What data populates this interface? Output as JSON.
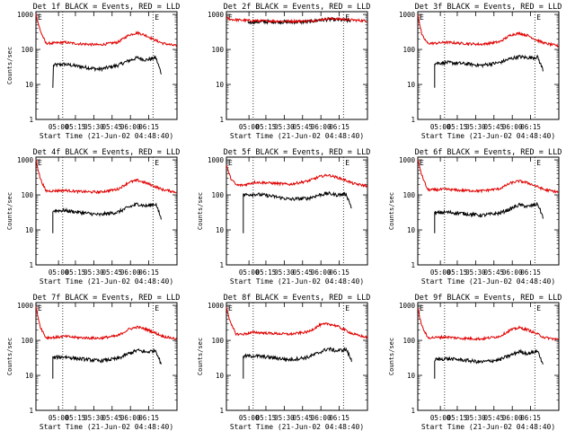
{
  "chart_data": [
    {
      "type": "line",
      "title": "Det 1f BLACK = Events, RED = LLD",
      "ylabel": "Counts/sec",
      "xlabel": "Start Time (21-Jun-02 04:48:40)",
      "xticks": [
        "05:00",
        "05:15",
        "05:30",
        "05:45",
        "06:00",
        "06:15"
      ],
      "yticks": [
        "1",
        "10",
        "100",
        "1000"
      ],
      "ylim": [
        1,
        1200
      ],
      "yscale": "log",
      "markers": [
        "05:07",
        "06:08"
      ],
      "series": [
        {
          "color": "#000000",
          "x": [
            0,
            0.05,
            0.12,
            0.2,
            0.3,
            0.45,
            0.58,
            0.66,
            0.72,
            0.78,
            0.85,
            0.89
          ],
          "y": [
            null,
            null,
            35,
            38,
            33,
            27,
            35,
            48,
            58,
            50,
            58,
            20
          ]
        },
        {
          "color": "#e00000",
          "x": [
            0,
            0.03,
            0.07,
            0.12,
            0.2,
            0.3,
            0.45,
            0.58,
            0.66,
            0.72,
            0.78,
            0.85,
            0.9,
            1.0
          ],
          "y": [
            1000,
            350,
            150,
            150,
            160,
            145,
            135,
            160,
            260,
            300,
            250,
            180,
            150,
            125
          ]
        }
      ]
    },
    {
      "type": "line",
      "title": "Det 2f BLACK = Events, RED = LLD",
      "ylabel": "",
      "xlabel": "Start Time (21-Jun-02 04:48:40)",
      "xticks": [
        "05:00",
        "05:15",
        "05:30",
        "05:45",
        "06:00",
        "06:15"
      ],
      "yticks": [
        "1",
        "10",
        "100",
        "1000"
      ],
      "ylim": [
        1,
        1200
      ],
      "yscale": "log",
      "markers": [
        "05:07",
        "06:08"
      ],
      "series": [
        {
          "color": "#000000",
          "x": [
            0.15,
            0.3,
            0.45,
            0.58,
            0.66,
            0.72,
            0.8,
            0.88
          ],
          "y": [
            600,
            620,
            600,
            620,
            680,
            720,
            700,
            650
          ]
        },
        {
          "color": "#e00000",
          "x": [
            0,
            0.03,
            0.07,
            0.12,
            0.2,
            0.3,
            0.45,
            0.58,
            0.66,
            0.72,
            0.8,
            0.88,
            1.0
          ],
          "y": [
            800,
            720,
            700,
            680,
            660,
            650,
            640,
            650,
            700,
            760,
            740,
            700,
            650
          ]
        }
      ]
    },
    {
      "type": "line",
      "title": "Det 3f BLACK = Events, RED = LLD",
      "ylabel": "",
      "xlabel": "Start Time (21-Jun-02 04:48:40)",
      "xticks": [
        "05:00",
        "05:15",
        "05:30",
        "05:45",
        "06:00",
        "06:15"
      ],
      "yticks": [
        "1",
        "10",
        "100",
        "1000"
      ],
      "ylim": [
        1,
        1200
      ],
      "yscale": "log",
      "markers": [
        "05:07",
        "06:08"
      ],
      "series": [
        {
          "color": "#000000",
          "x": [
            0.12,
            0.2,
            0.3,
            0.45,
            0.58,
            0.66,
            0.72,
            0.78,
            0.85,
            0.89
          ],
          "y": [
            40,
            42,
            40,
            35,
            42,
            55,
            62,
            58,
            60,
            25
          ]
        },
        {
          "color": "#e00000",
          "x": [
            0,
            0.03,
            0.07,
            0.12,
            0.2,
            0.3,
            0.45,
            0.58,
            0.66,
            0.72,
            0.78,
            0.85,
            0.9,
            1.0
          ],
          "y": [
            1000,
            250,
            150,
            150,
            160,
            150,
            140,
            165,
            260,
            290,
            250,
            180,
            150,
            125
          ]
        }
      ]
    },
    {
      "type": "line",
      "title": "Det 4f BLACK = Events, RED = LLD",
      "ylabel": "Counts/sec",
      "xlabel": "Start Time (21-Jun-02 04:48:40)",
      "xticks": [
        "05:00",
        "05:15",
        "05:30",
        "05:45",
        "06:00",
        "06:15"
      ],
      "yticks": [
        "1",
        "10",
        "100",
        "1000"
      ],
      "ylim": [
        1,
        1200
      ],
      "yscale": "log",
      "markers": [
        "05:07",
        "06:08"
      ],
      "series": [
        {
          "color": "#000000",
          "x": [
            0.12,
            0.2,
            0.3,
            0.45,
            0.58,
            0.66,
            0.72,
            0.78,
            0.85,
            0.89
          ],
          "y": [
            35,
            36,
            32,
            27,
            32,
            45,
            55,
            48,
            55,
            20
          ]
        },
        {
          "color": "#e00000",
          "x": [
            0,
            0.03,
            0.07,
            0.12,
            0.2,
            0.3,
            0.45,
            0.58,
            0.66,
            0.72,
            0.78,
            0.85,
            0.9,
            1.0
          ],
          "y": [
            1000,
            300,
            130,
            130,
            135,
            125,
            120,
            145,
            230,
            260,
            220,
            170,
            140,
            120
          ]
        }
      ]
    },
    {
      "type": "line",
      "title": "Det 5f BLACK = Events, RED = LLD",
      "ylabel": "Counts/sec",
      "xlabel": "Start Time (21-Jun-02 04:48:40)",
      "xticks": [
        "05:00",
        "05:15",
        "05:30",
        "05:45",
        "06:00",
        "06:15"
      ],
      "yticks": [
        "1",
        "10",
        "100",
        "1000"
      ],
      "ylim": [
        1,
        1200
      ],
      "yscale": "log",
      "markers": [
        "05:07",
        "06:08"
      ],
      "series": [
        {
          "color": "#000000",
          "x": [
            0.12,
            0.2,
            0.3,
            0.45,
            0.58,
            0.66,
            0.72,
            0.78,
            0.85,
            0.89
          ],
          "y": [
            100,
            105,
            95,
            75,
            80,
            100,
            110,
            100,
            105,
            40
          ]
        },
        {
          "color": "#e00000",
          "x": [
            0,
            0.03,
            0.07,
            0.12,
            0.2,
            0.3,
            0.45,
            0.58,
            0.66,
            0.72,
            0.78,
            0.85,
            0.9,
            1.0
          ],
          "y": [
            700,
            300,
            190,
            190,
            230,
            220,
            200,
            250,
            330,
            370,
            320,
            260,
            210,
            180
          ]
        }
      ]
    },
    {
      "type": "line",
      "title": "Det 6f BLACK = Events, RED = LLD",
      "ylabel": "Counts/sec",
      "xlabel": "Start Time (21-Jun-02 04:48:40)",
      "xticks": [
        "05:00",
        "05:15",
        "05:30",
        "05:45",
        "06:00",
        "06:15"
      ],
      "yticks": [
        "1",
        "10",
        "100",
        "1000"
      ],
      "ylim": [
        1,
        1200
      ],
      "yscale": "log",
      "markers": [
        "05:07",
        "06:08"
      ],
      "series": [
        {
          "color": "#000000",
          "x": [
            0.12,
            0.2,
            0.3,
            0.45,
            0.58,
            0.66,
            0.72,
            0.78,
            0.85,
            0.89
          ],
          "y": [
            30,
            32,
            30,
            26,
            30,
            40,
            52,
            46,
            55,
            22
          ]
        },
        {
          "color": "#e00000",
          "x": [
            0,
            0.03,
            0.07,
            0.12,
            0.2,
            0.3,
            0.45,
            0.58,
            0.66,
            0.72,
            0.78,
            0.85,
            0.9,
            1.0
          ],
          "y": [
            1000,
            350,
            140,
            140,
            145,
            135,
            130,
            150,
            220,
            250,
            220,
            170,
            140,
            120
          ]
        }
      ]
    },
    {
      "type": "line",
      "title": "Det 7f BLACK = Events, RED = LLD",
      "ylabel": "Counts/sec",
      "xlabel": "Start Time (21-Jun-02 04:48:40)",
      "xticks": [
        "05:00",
        "05:15",
        "05:30",
        "05:45",
        "06:00",
        "06:15"
      ],
      "yticks": [
        "1",
        "10",
        "100",
        "1000"
      ],
      "ylim": [
        1,
        1200
      ],
      "yscale": "log",
      "markers": [
        "05:07",
        "06:08"
      ],
      "series": [
        {
          "color": "#000000",
          "x": [
            0.12,
            0.2,
            0.3,
            0.45,
            0.58,
            0.66,
            0.72,
            0.78,
            0.85,
            0.89
          ],
          "y": [
            32,
            34,
            30,
            26,
            30,
            42,
            52,
            46,
            52,
            20
          ]
        },
        {
          "color": "#e00000",
          "x": [
            0,
            0.03,
            0.07,
            0.12,
            0.2,
            0.3,
            0.45,
            0.58,
            0.66,
            0.72,
            0.78,
            0.85,
            0.9,
            1.0
          ],
          "y": [
            900,
            250,
            120,
            120,
            130,
            120,
            115,
            135,
            210,
            240,
            210,
            160,
            130,
            110
          ]
        }
      ]
    },
    {
      "type": "line",
      "title": "Det 8f BLACK = Events, RED = LLD",
      "ylabel": "Counts/sec",
      "xlabel": "Start Time (21-Jun-02 04:48:40)",
      "xticks": [
        "05:00",
        "05:15",
        "05:30",
        "05:45",
        "06:00",
        "06:15"
      ],
      "yticks": [
        "1",
        "10",
        "100",
        "1000"
      ],
      "ylim": [
        1,
        1200
      ],
      "yscale": "log",
      "markers": [
        "05:07",
        "06:08"
      ],
      "series": [
        {
          "color": "#000000",
          "x": [
            0.12,
            0.2,
            0.3,
            0.45,
            0.58,
            0.66,
            0.72,
            0.78,
            0.85,
            0.89
          ],
          "y": [
            35,
            36,
            33,
            28,
            33,
            45,
            58,
            50,
            55,
            25
          ]
        },
        {
          "color": "#e00000",
          "x": [
            0,
            0.03,
            0.07,
            0.12,
            0.2,
            0.3,
            0.45,
            0.58,
            0.66,
            0.72,
            0.78,
            0.85,
            0.9,
            1.0
          ],
          "y": [
            900,
            300,
            150,
            150,
            170,
            160,
            150,
            175,
            270,
            300,
            260,
            190,
            150,
            120
          ]
        }
      ]
    },
    {
      "type": "line",
      "title": "Det 9f BLACK = Events, RED = LLD",
      "ylabel": "Counts/sec",
      "xlabel": "Start Time (21-Jun-02 04:48:40)",
      "xticks": [
        "05:00",
        "05:15",
        "05:30",
        "05:45",
        "06:00",
        "06:15"
      ],
      "yticks": [
        "1",
        "10",
        "100",
        "1000"
      ],
      "ylim": [
        1,
        1200
      ],
      "yscale": "log",
      "markers": [
        "05:07",
        "06:08"
      ],
      "series": [
        {
          "color": "#000000",
          "x": [
            0.12,
            0.2,
            0.3,
            0.45,
            0.58,
            0.66,
            0.72,
            0.78,
            0.85,
            0.89
          ],
          "y": [
            28,
            30,
            28,
            24,
            28,
            38,
            48,
            42,
            50,
            20
          ]
        },
        {
          "color": "#e00000",
          "x": [
            0,
            0.03,
            0.07,
            0.12,
            0.2,
            0.3,
            0.45,
            0.58,
            0.66,
            0.72,
            0.78,
            0.85,
            0.9,
            1.0
          ],
          "y": [
            800,
            250,
            120,
            120,
            125,
            115,
            110,
            130,
            200,
            230,
            200,
            150,
            120,
            105
          ]
        }
      ]
    }
  ]
}
